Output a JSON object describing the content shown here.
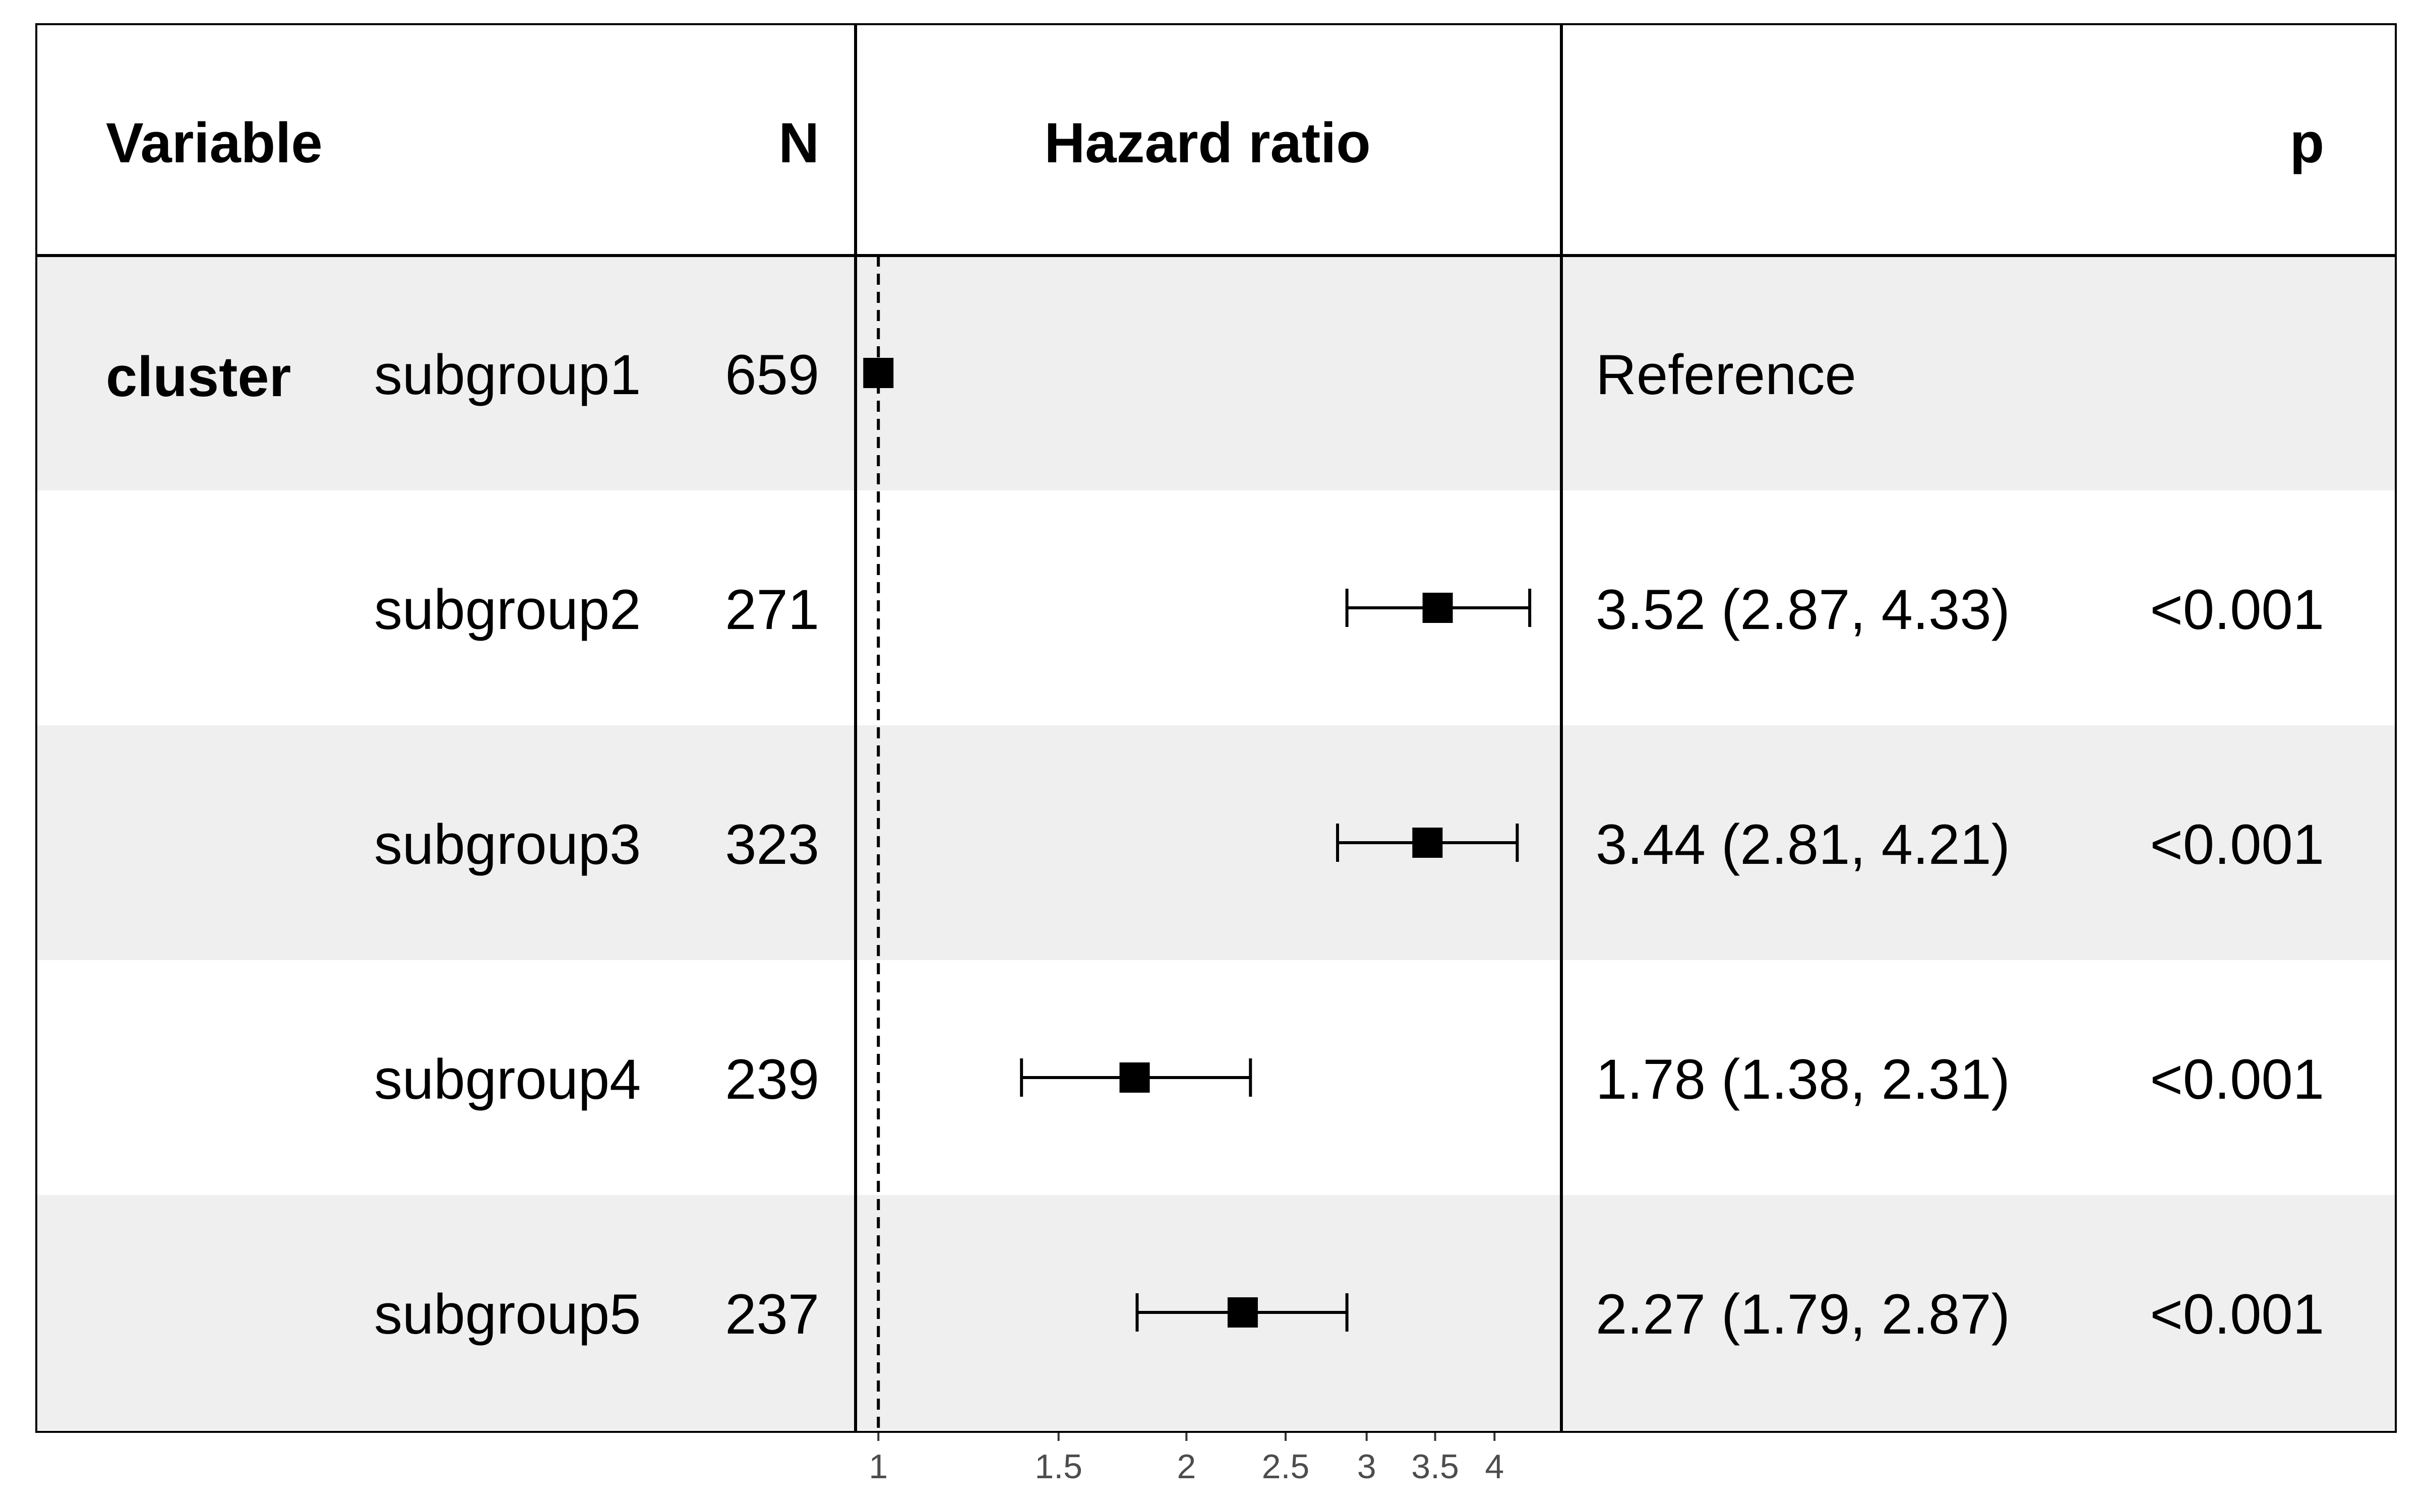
{
  "chart_data": {
    "type": "forest",
    "columns": {
      "variable": "Variable",
      "n": "N",
      "hazard_ratio": "Hazard ratio",
      "p": "p"
    },
    "variable_group": "cluster",
    "rows": [
      {
        "level": "subgroup1",
        "n": "659",
        "estimate": "Reference",
        "p": "",
        "hr": 1.0,
        "lower": null,
        "upper": null
      },
      {
        "level": "subgroup2",
        "n": "271",
        "estimate": "3.52 (2.87, 4.33)",
        "p": "<0.001",
        "hr": 3.52,
        "lower": 2.87,
        "upper": 4.33
      },
      {
        "level": "subgroup3",
        "n": "323",
        "estimate": "3.44 (2.81, 4.21)",
        "p": "<0.001",
        "hr": 3.44,
        "lower": 2.81,
        "upper": 4.21
      },
      {
        "level": "subgroup4",
        "n": "239",
        "estimate": "1.78 (1.38, 2.31)",
        "p": "<0.001",
        "hr": 1.78,
        "lower": 1.38,
        "upper": 2.31
      },
      {
        "level": "subgroup5",
        "n": "237",
        "estimate": "2.27 (1.79, 2.87)",
        "p": "<0.001",
        "hr": 2.27,
        "lower": 1.79,
        "upper": 2.87
      }
    ],
    "x_scale": "log",
    "reference_line": 1,
    "xlim": [
      0.95,
      4.65
    ],
    "x_ticks": [
      1,
      1.5,
      2,
      2.5,
      3,
      3.5,
      4
    ],
    "x_tick_labels": [
      "1",
      "1.5",
      "2",
      "2.5",
      "3",
      "3.5",
      "4"
    ]
  },
  "colors": {
    "stripe": "#efefef",
    "marker": "#000000",
    "tick_text": "#4d4d4d"
  }
}
